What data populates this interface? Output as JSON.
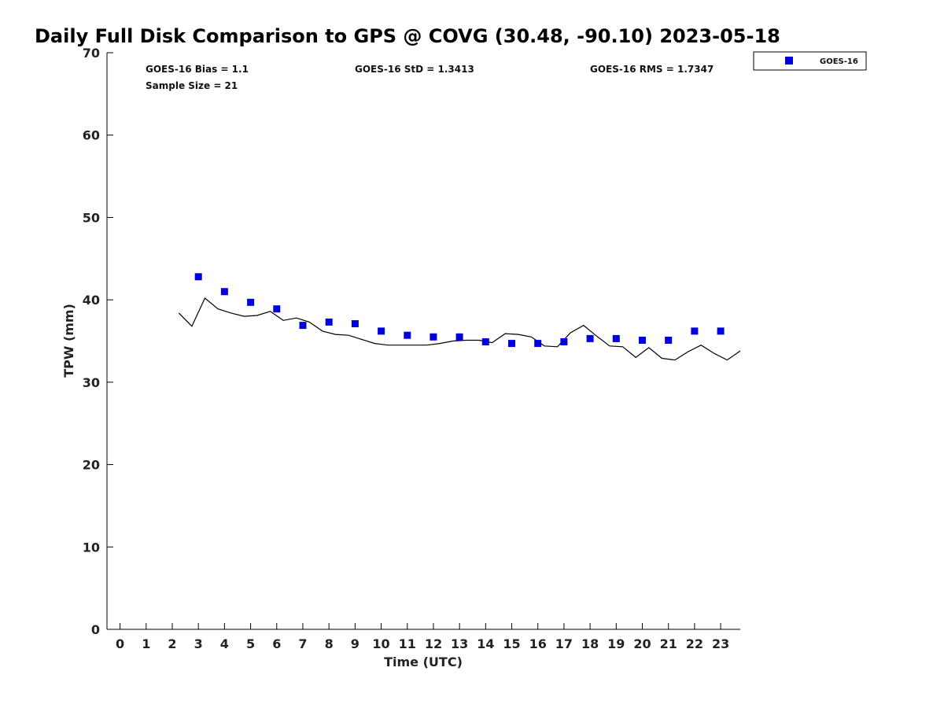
{
  "chart_data": {
    "type": "scatter",
    "title": "Daily Full Disk Comparison to GPS @ COVG (30.48, -90.10) 2023-05-18",
    "xlabel": "Time (UTC)",
    "ylabel": "TPW (mm)",
    "xlim": [
      -0.5,
      23.75
    ],
    "ylim": [
      0,
      70
    ],
    "x_ticks": [
      "0",
      "1",
      "2",
      "3",
      "4",
      "5",
      "6",
      "7",
      "8",
      "9",
      "10",
      "11",
      "12",
      "13",
      "14",
      "15",
      "16",
      "17",
      "18",
      "19",
      "20",
      "21",
      "22",
      "23"
    ],
    "y_ticks": [
      "0",
      "10",
      "20",
      "30",
      "40",
      "50",
      "60",
      "70"
    ],
    "grid": false,
    "legend": {
      "position": "top-right",
      "entries": [
        "GOES-16"
      ]
    },
    "stats": {
      "bias": "GOES-16 Bias = 1.1",
      "std": "GOES-16 StD = 1.3413",
      "rms": "GOES-16 RMS = 1.7347",
      "sample": "Sample Size = 21"
    },
    "series": [
      {
        "name": "GOES-16",
        "kind": "scatter",
        "color": "#0000dd",
        "x": [
          3,
          4,
          5,
          6,
          7,
          8,
          9,
          10,
          11,
          12,
          13,
          14,
          15,
          16,
          17,
          18,
          19,
          20,
          21,
          22,
          23
        ],
        "y": [
          42.8,
          41.0,
          39.7,
          38.9,
          36.9,
          37.3,
          37.1,
          36.2,
          35.7,
          35.5,
          35.5,
          34.9,
          34.7,
          34.7,
          34.9,
          35.3,
          35.3,
          35.1,
          35.1,
          36.2,
          36.2
        ]
      },
      {
        "kind": "line",
        "color": "#000000",
        "x": [
          2.25,
          2.75,
          3.25,
          3.75,
          4.25,
          4.75,
          5.25,
          5.75,
          6.25,
          6.75,
          7.25,
          7.75,
          8.25,
          8.75,
          9.25,
          9.75,
          10.25,
          10.75,
          11.25,
          11.75,
          12.25,
          12.75,
          13.25,
          13.75,
          14.25,
          14.75,
          15.25,
          15.75,
          16.25,
          16.75,
          17.25,
          17.75,
          18.25,
          18.75,
          19.25,
          19.75,
          20.25,
          20.75,
          21.25,
          21.75,
          22.25,
          22.75,
          23.25,
          23.75
        ],
        "y": [
          38.4,
          36.8,
          40.2,
          38.9,
          38.4,
          38.0,
          38.1,
          38.6,
          37.5,
          37.8,
          37.3,
          36.2,
          35.8,
          35.7,
          35.2,
          34.7,
          34.5,
          34.5,
          34.5,
          34.5,
          34.7,
          35.0,
          35.1,
          35.1,
          34.8,
          35.9,
          35.8,
          35.5,
          34.4,
          34.3,
          36.0,
          36.9,
          35.6,
          34.4,
          34.3,
          33.0,
          34.2,
          32.9,
          32.7,
          33.7,
          34.5,
          33.5,
          32.7,
          33.8
        ]
      }
    ]
  }
}
